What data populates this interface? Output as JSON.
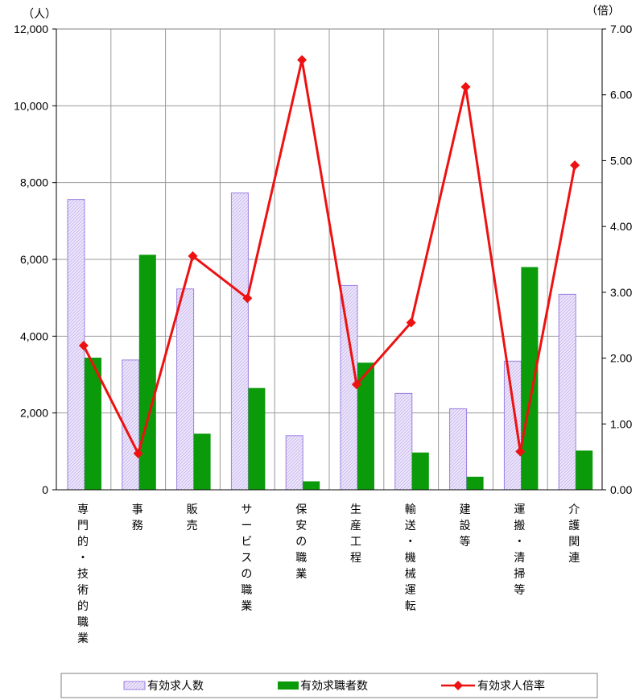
{
  "chart_data": {
    "type": "bar",
    "left_axis_unit": "（人）",
    "right_axis_unit": "（倍）",
    "left_ticks": [
      "0",
      "2,000",
      "4,000",
      "6,000",
      "8,000",
      "10,000",
      "12,000"
    ],
    "right_ticks": [
      "0.00",
      "1.00",
      "2.00",
      "3.00",
      "4.00",
      "5.00",
      "6.00",
      "7.00"
    ],
    "ylim_left": [
      0,
      12000
    ],
    "ylim_right": [
      0,
      7
    ],
    "grid": true,
    "legend_position": "bottom",
    "categories": [
      "専門的・技術的職業",
      "事務",
      "販売",
      "サービスの職業",
      "保安の職業",
      "生産工程",
      "輸送・機械運転",
      "建設等",
      "運搬・清掃等",
      "介護関連"
    ],
    "series": [
      {
        "name": "有効求人数",
        "type": "bar",
        "axis": "left",
        "color": "#9b7fe0",
        "values": [
          7560,
          3380,
          5230,
          7730,
          1410,
          5320,
          2510,
          2110,
          3350,
          5090
        ]
      },
      {
        "name": "有効求職者数",
        "type": "bar",
        "axis": "left",
        "color": "#0a9a0a",
        "values": [
          3440,
          6120,
          1460,
          2650,
          220,
          3310,
          970,
          340,
          5800,
          1020
        ]
      },
      {
        "name": "有効求人倍率",
        "type": "line",
        "axis": "right",
        "color": "#ee1111",
        "values": [
          2.19,
          0.55,
          3.55,
          2.91,
          6.53,
          1.6,
          2.54,
          6.12,
          0.58,
          4.93
        ]
      }
    ]
  }
}
